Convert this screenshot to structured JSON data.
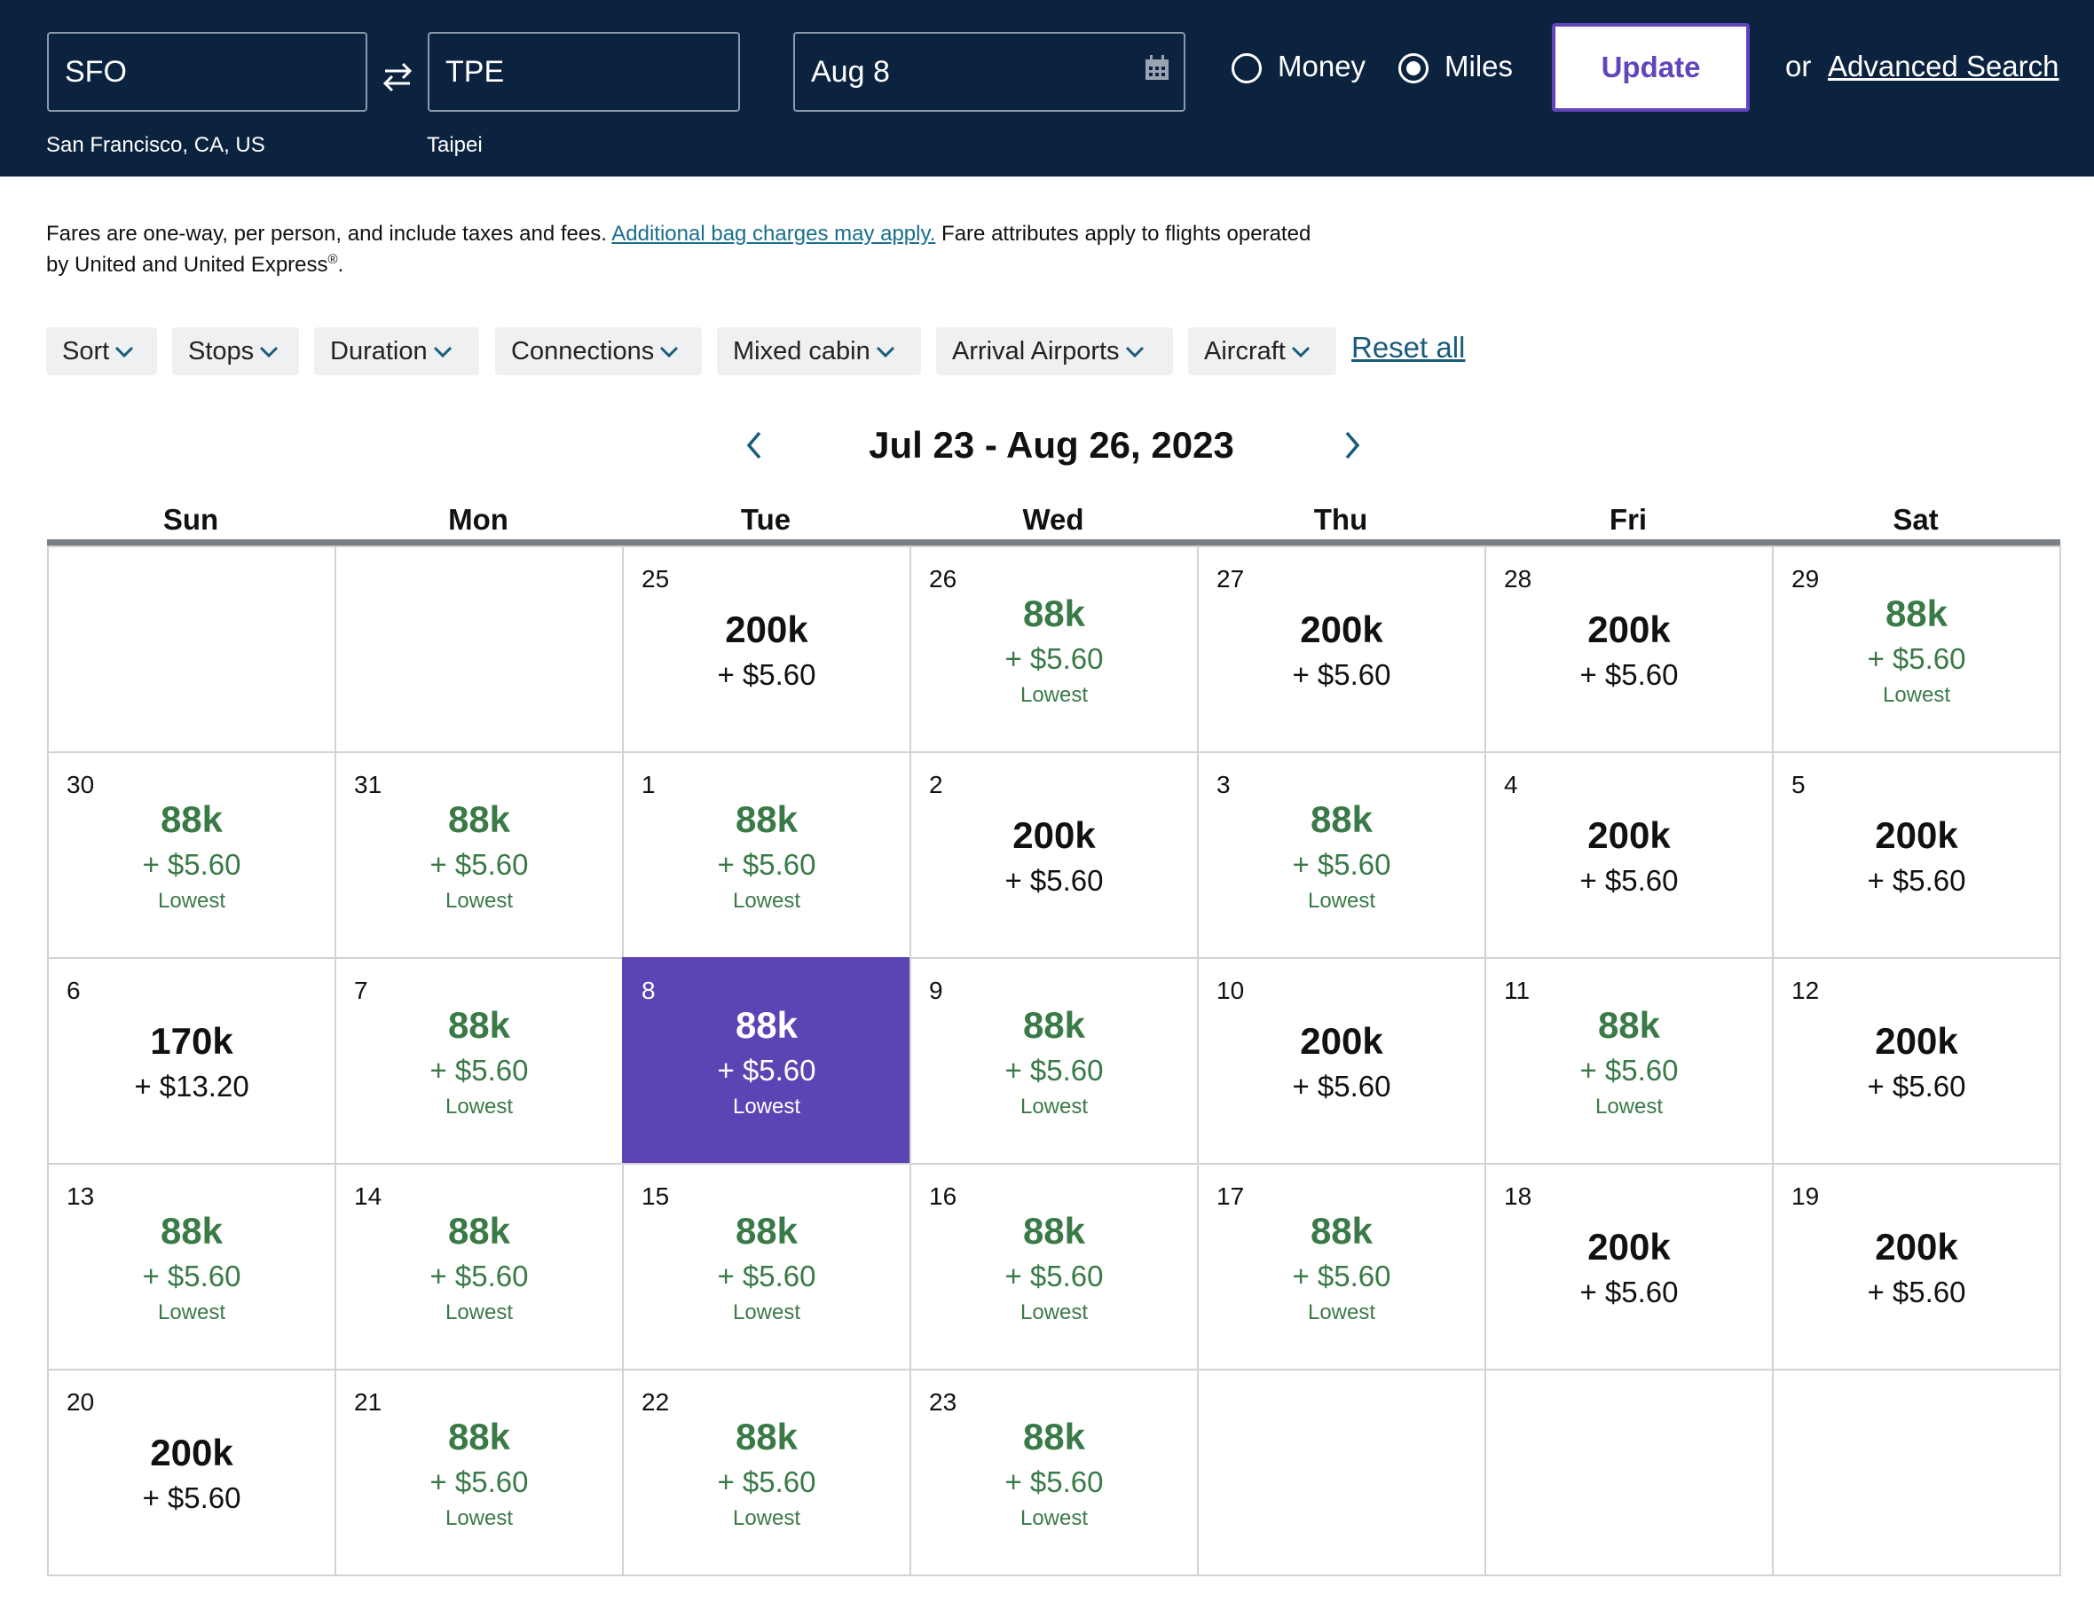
{
  "header": {
    "origin": {
      "code": "SFO",
      "city": "San Francisco, CA, US"
    },
    "destination": {
      "code": "TPE",
      "city": "Taipei"
    },
    "date": "Aug 8",
    "pay_options": [
      {
        "label": "Money",
        "selected": false
      },
      {
        "label": "Miles",
        "selected": true
      }
    ],
    "update": "Update",
    "or": "or",
    "advanced_search": "Advanced Search"
  },
  "notice": {
    "before": "Fares are one-way, per person, and include taxes and fees.",
    "link": "Additional bag charges may apply.",
    "after": "Fare attributes apply to flights operated",
    "line2": "by United and United Express",
    "mark": "®",
    "end": "."
  },
  "filters": [
    "Sort",
    "Stops",
    "Duration",
    "Connections",
    "Mixed cabin",
    "Arrival Airports",
    "Aircraft"
  ],
  "reset": "Reset all",
  "calendar": {
    "title": "Jul 23 - Aug 26, 2023",
    "weekdays": [
      "Sun",
      "Mon",
      "Tue",
      "Wed",
      "Thu",
      "Fri",
      "Sat"
    ],
    "weeks": [
      [
        null,
        null,
        {
          "day": 25,
          "miles": "200k",
          "fee": "+ $5.60"
        },
        {
          "day": 26,
          "miles": "88k",
          "fee": "+ $5.60",
          "tag": "Lowest"
        },
        {
          "day": 27,
          "miles": "200k",
          "fee": "+ $5.60"
        },
        {
          "day": 28,
          "miles": "200k",
          "fee": "+ $5.60"
        },
        {
          "day": 29,
          "miles": "88k",
          "fee": "+ $5.60",
          "tag": "Lowest"
        }
      ],
      [
        {
          "day": 30,
          "miles": "88k",
          "fee": "+ $5.60",
          "tag": "Lowest"
        },
        {
          "day": 31,
          "miles": "88k",
          "fee": "+ $5.60",
          "tag": "Lowest"
        },
        {
          "day": 1,
          "miles": "88k",
          "fee": "+ $5.60",
          "tag": "Lowest"
        },
        {
          "day": 2,
          "miles": "200k",
          "fee": "+ $5.60"
        },
        {
          "day": 3,
          "miles": "88k",
          "fee": "+ $5.60",
          "tag": "Lowest"
        },
        {
          "day": 4,
          "miles": "200k",
          "fee": "+ $5.60"
        },
        {
          "day": 5,
          "miles": "200k",
          "fee": "+ $5.60"
        }
      ],
      [
        {
          "day": 6,
          "miles": "170k",
          "fee": "+ $13.20"
        },
        {
          "day": 7,
          "miles": "88k",
          "fee": "+ $5.60",
          "tag": "Lowest"
        },
        {
          "day": 8,
          "miles": "88k",
          "fee": "+ $5.60",
          "tag": "Lowest",
          "selected": true
        },
        {
          "day": 9,
          "miles": "88k",
          "fee": "+ $5.60",
          "tag": "Lowest"
        },
        {
          "day": 10,
          "miles": "200k",
          "fee": "+ $5.60"
        },
        {
          "day": 11,
          "miles": "88k",
          "fee": "+ $5.60",
          "tag": "Lowest"
        },
        {
          "day": 12,
          "miles": "200k",
          "fee": "+ $5.60"
        }
      ],
      [
        {
          "day": 13,
          "miles": "88k",
          "fee": "+ $5.60",
          "tag": "Lowest"
        },
        {
          "day": 14,
          "miles": "88k",
          "fee": "+ $5.60",
          "tag": "Lowest"
        },
        {
          "day": 15,
          "miles": "88k",
          "fee": "+ $5.60",
          "tag": "Lowest"
        },
        {
          "day": 16,
          "miles": "88k",
          "fee": "+ $5.60",
          "tag": "Lowest"
        },
        {
          "day": 17,
          "miles": "88k",
          "fee": "+ $5.60",
          "tag": "Lowest"
        },
        {
          "day": 18,
          "miles": "200k",
          "fee": "+ $5.60"
        },
        {
          "day": 19,
          "miles": "200k",
          "fee": "+ $5.60"
        }
      ],
      [
        {
          "day": 20,
          "miles": "200k",
          "fee": "+ $5.60"
        },
        {
          "day": 21,
          "miles": "88k",
          "fee": "+ $5.60",
          "tag": "Lowest"
        },
        {
          "day": 22,
          "miles": "88k",
          "fee": "+ $5.60",
          "tag": "Lowest"
        },
        {
          "day": 23,
          "miles": "88k",
          "fee": "+ $5.60",
          "tag": "Lowest"
        },
        null,
        null,
        null
      ]
    ]
  }
}
